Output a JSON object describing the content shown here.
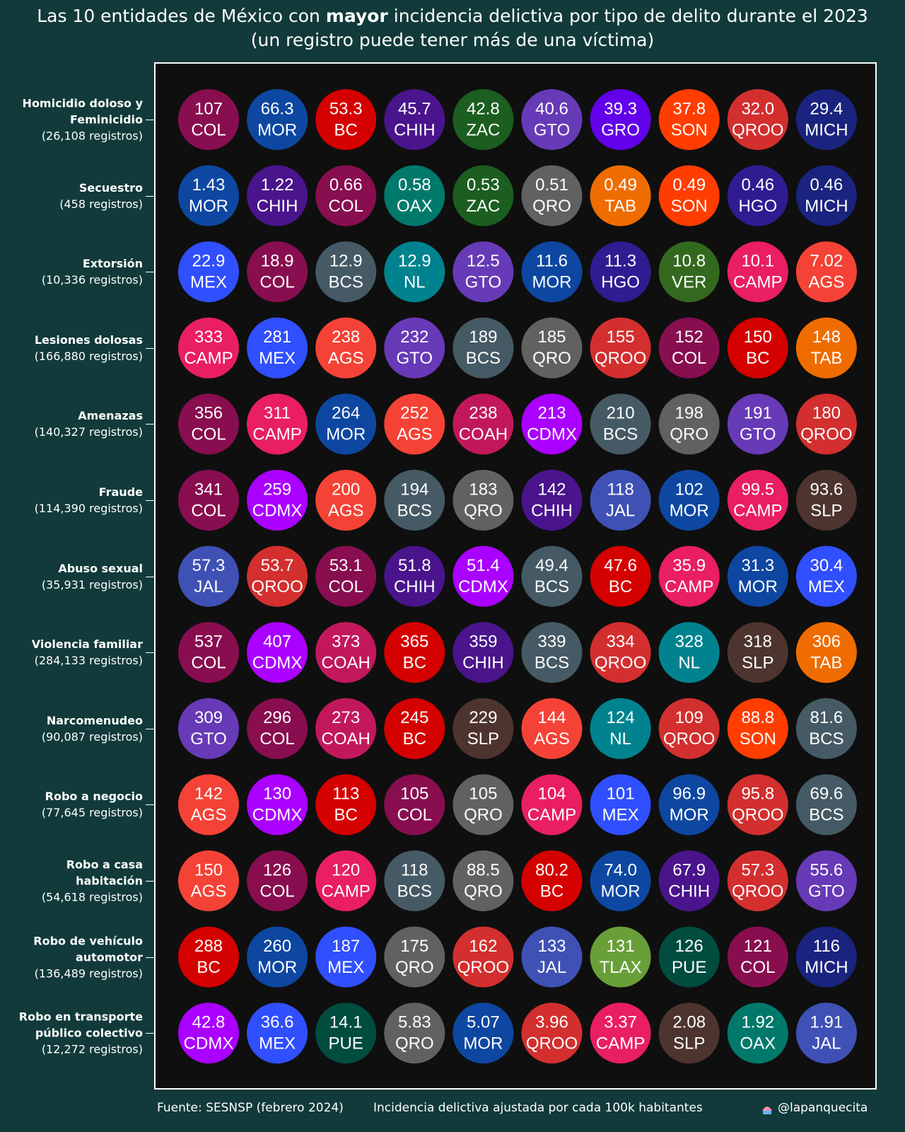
{
  "chart_data": {
    "type": "dot-grid",
    "title_start": "Las 10 entidades de México con",
    "title_bold": "mayor",
    "title_end": "incidencia delictiva por tipo de delito durante el 2023",
    "subtitle": "(un registro puede tener más de una víctima)",
    "source": "Fuente: SESNSP (febrero 2024)",
    "note": "Incidencia delictiva ajustada por cada 100k habitantes",
    "credit": "@lapanquecita",
    "state_colors": {
      "COL": "#880e4f",
      "MOR": "#0d47a1",
      "BC": "#d50000",
      "CHIH": "#4a148c",
      "ZAC": "#1b5e20",
      "GTO": "#673ab7",
      "GRO": "#6200ea",
      "SON": "#ff3d00",
      "QROO": "#d32f2f",
      "MICH": "#1a237e",
      "OAX": "#00796b",
      "QRO": "#616161",
      "TAB": "#ef6c00",
      "HGO": "#311b92",
      "MEX": "#304ffe",
      "BCS": "#455a64",
      "NL": "#00838f",
      "VER": "#33691e",
      "CAMP": "#e91e63",
      "AGS": "#f44336",
      "COAH": "#c2185b",
      "CDMX": "#aa00ff",
      "JAL": "#3f51b5",
      "SLP": "#4e342e",
      "TLAX": "#689f38",
      "PUE": "#004d40"
    },
    "rows": [
      {
        "name": "Homicidio doloso y Feminicidio",
        "records": "(26,108 registros)",
        "values": [
          107,
          66.3,
          53.3,
          45.7,
          42.8,
          40.6,
          39.3,
          37.8,
          32.0,
          29.4
        ],
        "value_labels": [
          "107",
          "66.3",
          "53.3",
          "45.7",
          "42.8",
          "40.6",
          "39.3",
          "37.8",
          "32.0",
          "29.4"
        ],
        "states": [
          "COL",
          "MOR",
          "BC",
          "CHIH",
          "ZAC",
          "GTO",
          "GRO",
          "SON",
          "QROO",
          "MICH"
        ]
      },
      {
        "name": "Secuestro",
        "records": "(458 registros)",
        "values": [
          1.43,
          1.22,
          0.66,
          0.58,
          0.53,
          0.51,
          0.49,
          0.49,
          0.46,
          0.46
        ],
        "states": [
          "MOR",
          "CHIH",
          "COL",
          "OAX",
          "ZAC",
          "QRO",
          "TAB",
          "SON",
          "HGO",
          "MICH"
        ]
      },
      {
        "name": "Extorsión",
        "records": "(10,336 registros)",
        "values": [
          22.9,
          18.9,
          12.9,
          12.9,
          12.5,
          11.6,
          11.3,
          10.8,
          10.1,
          7.02
        ],
        "states": [
          "MEX",
          "COL",
          "BCS",
          "NL",
          "GTO",
          "MOR",
          "HGO",
          "VER",
          "CAMP",
          "AGS"
        ]
      },
      {
        "name": "Lesiones dolosas",
        "records": "(166,880 registros)",
        "values": [
          333,
          281,
          238,
          232,
          189,
          185,
          155,
          152,
          150,
          148
        ],
        "states": [
          "CAMP",
          "MEX",
          "AGS",
          "GTO",
          "BCS",
          "QRO",
          "QROO",
          "COL",
          "BC",
          "TAB"
        ]
      },
      {
        "name": "Amenazas",
        "records": "(140,327 registros)",
        "values": [
          356,
          311,
          264,
          252,
          238,
          213,
          210,
          198,
          191,
          180
        ],
        "states": [
          "COL",
          "CAMP",
          "MOR",
          "AGS",
          "COAH",
          "CDMX",
          "BCS",
          "QRO",
          "GTO",
          "QROO"
        ]
      },
      {
        "name": "Fraude",
        "records": "(114,390 registros)",
        "values": [
          341,
          259,
          200,
          194,
          183,
          142,
          118,
          102,
          99.5,
          93.6
        ],
        "states": [
          "COL",
          "CDMX",
          "AGS",
          "BCS",
          "QRO",
          "CHIH",
          "JAL",
          "MOR",
          "CAMP",
          "SLP"
        ]
      },
      {
        "name": "Abuso sexual",
        "records": "(35,931 registros)",
        "values": [
          57.3,
          53.7,
          53.1,
          51.8,
          51.4,
          49.4,
          47.6,
          35.9,
          31.3,
          30.4
        ],
        "states": [
          "JAL",
          "QROO",
          "COL",
          "CHIH",
          "CDMX",
          "BCS",
          "BC",
          "CAMP",
          "MOR",
          "MEX"
        ]
      },
      {
        "name": "Violencia familiar",
        "records": "(284,133 registros)",
        "values": [
          537,
          407,
          373,
          365,
          359,
          339,
          334,
          328,
          318,
          306
        ],
        "states": [
          "COL",
          "CDMX",
          "COAH",
          "BC",
          "CHIH",
          "BCS",
          "QROO",
          "NL",
          "SLP",
          "TAB"
        ]
      },
      {
        "name": "Narcomenudeo",
        "records": "(90,087 registros)",
        "values": [
          309,
          296,
          273,
          245,
          229,
          144,
          124,
          109,
          88.8,
          81.6
        ],
        "states": [
          "GTO",
          "COL",
          "COAH",
          "BC",
          "SLP",
          "AGS",
          "NL",
          "QROO",
          "SON",
          "BCS"
        ]
      },
      {
        "name": "Robo a negocio",
        "records": "(77,645 registros)",
        "values": [
          142,
          130,
          113,
          105,
          105,
          104,
          101,
          96.9,
          95.8,
          69.6
        ],
        "states": [
          "AGS",
          "CDMX",
          "BC",
          "COL",
          "QRO",
          "CAMP",
          "MEX",
          "MOR",
          "QROO",
          "BCS"
        ]
      },
      {
        "name": "Robo a casa habitación",
        "records": "(54,618 registros)",
        "values": [
          150,
          126,
          120,
          118,
          88.5,
          80.2,
          74.0,
          67.9,
          57.3,
          55.6
        ],
        "value_labels": [
          "150",
          "126",
          "120",
          "118",
          "88.5",
          "80.2",
          "74.0",
          "67.9",
          "57.3",
          "55.6"
        ],
        "states": [
          "AGS",
          "COL",
          "CAMP",
          "BCS",
          "QRO",
          "BC",
          "MOR",
          "CHIH",
          "QROO",
          "GTO"
        ]
      },
      {
        "name": "Robo de vehículo automotor",
        "records": "(136,489 registros)",
        "values": [
          288,
          260,
          187,
          175,
          162,
          133,
          131,
          126,
          121,
          116
        ],
        "states": [
          "BC",
          "MOR",
          "MEX",
          "QRO",
          "QROO",
          "JAL",
          "TLAX",
          "PUE",
          "COL",
          "MICH"
        ]
      },
      {
        "name": "Robo en transporte público colectivo",
        "records": "(12,272 registros)",
        "values": [
          42.8,
          36.6,
          14.1,
          5.83,
          5.07,
          3.96,
          3.37,
          2.08,
          1.92,
          1.91
        ],
        "states": [
          "CDMX",
          "MEX",
          "PUE",
          "QRO",
          "MOR",
          "QROO",
          "CAMP",
          "SLP",
          "OAX",
          "JAL"
        ]
      }
    ]
  }
}
